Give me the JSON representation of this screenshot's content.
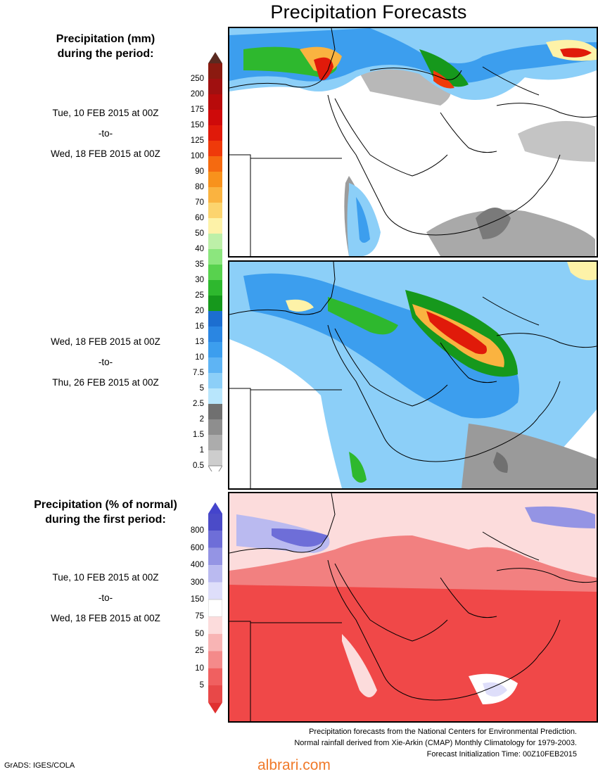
{
  "title": "Precipitation Forecasts",
  "precip_heading": [
    "Precipitation (mm)",
    "during the period:"
  ],
  "periods": [
    {
      "from": "Tue, 10 FEB 2015 at 00Z",
      "sep": "-to-",
      "to": "Wed, 18 FEB 2015 at 00Z"
    },
    {
      "from": "Wed, 18 FEB 2015 at 00Z",
      "sep": "-to-",
      "to": "Thu, 26 FEB 2015 at 00Z"
    },
    {
      "from": "Tue, 10 FEB 2015 at 00Z",
      "sep": "-to-",
      "to": "Wed, 18 FEB 2015 at 00Z"
    }
  ],
  "pct_heading": [
    "Precipitation (% of normal)",
    "during the first period:"
  ],
  "precip_scale": {
    "labels": [
      "250",
      "200",
      "175",
      "150",
      "125",
      "100",
      "90",
      "80",
      "70",
      "60",
      "50",
      "40",
      "35",
      "30",
      "25",
      "20",
      "16",
      "13",
      "10",
      "7.5",
      "5",
      "2.5",
      "2",
      "1.5",
      "1",
      "0.5"
    ],
    "colors": [
      "#8b1a10",
      "#a01010",
      "#b80b0b",
      "#cf0a0a",
      "#e01a0a",
      "#ef3a0a",
      "#f56a10",
      "#f8921c",
      "#fab340",
      "#fcd46e",
      "#fdf2a8",
      "#bdf0a8",
      "#8ce67e",
      "#58d24e",
      "#2eb82e",
      "#16981c",
      "#1c6ed0",
      "#2a86e2",
      "#3c9eee",
      "#5eb4f4",
      "#8ccff8",
      "#b8e6fc",
      "#707070",
      "#8e8e8e",
      "#acacac",
      "#cdcdcd"
    ],
    "top_cap": "#5a2a20"
  },
  "pct_scale": {
    "labels": [
      "800",
      "600",
      "400",
      "300",
      "150",
      "75",
      "50",
      "25",
      "10",
      "5"
    ],
    "colors": [
      "#4b4bc8",
      "#6e6ed8",
      "#9494e4",
      "#babaf0",
      "#dedefa",
      "#ffffff",
      "#fcdcdc",
      "#f8b4b4",
      "#f48a8a",
      "#f06060",
      "#e84848"
    ],
    "top_cap": "#4444cc",
    "bottom_cap": "#e03030"
  },
  "footer": [
    "Precipitation forecasts from the National Centers for Environmental Prediction.",
    "Normal rainfall derived from Xie-Arkin (CMAP) Monthly Climatology for 1979-2003.",
    "Forecast Initialization Time: 00Z10FEB2015"
  ],
  "credit": "GrADS: IGES/COLA",
  "watermark": "albrari.com"
}
